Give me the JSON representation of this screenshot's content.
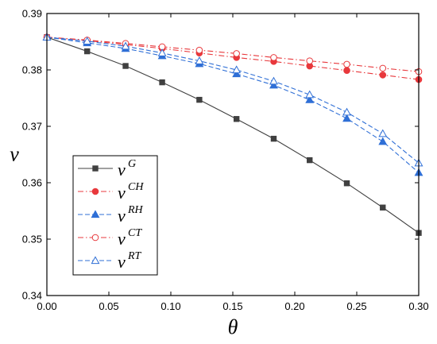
{
  "chart_data": {
    "type": "line",
    "title": "",
    "xlabel": "θ",
    "ylabel": "ν",
    "xlim": [
      0,
      0.3
    ],
    "ylim": [
      0.34,
      0.39
    ],
    "xticks": [
      "0.00",
      "0.05",
      "0.10",
      "0.15",
      "0.20",
      "0.25",
      "0.30"
    ],
    "yticks": [
      "0.34",
      "0.35",
      "0.36",
      "0.37",
      "0.38",
      "0.39"
    ],
    "grid": false,
    "legend_position": "lower-left",
    "x": [
      0,
      0.0325,
      0.0635,
      0.093,
      0.123,
      0.153,
      0.183,
      0.212,
      0.242,
      0.271,
      0.3
    ],
    "series": [
      {
        "name": "G",
        "legend_base": "ν",
        "color": "#404040",
        "marker": "square-filled",
        "line": "solid",
        "values": [
          0.3858,
          0.3833,
          0.3807,
          0.3778,
          0.3747,
          0.3713,
          0.3678,
          0.364,
          0.3599,
          0.3556,
          0.3511
        ]
      },
      {
        "name": "CH",
        "legend_base": "ν",
        "color": "#e8383c",
        "marker": "circle-filled",
        "line": "dash-dot",
        "values": [
          0.3858,
          0.3852,
          0.3845,
          0.3838,
          0.383,
          0.3822,
          0.3815,
          0.3807,
          0.3799,
          0.3791,
          0.3783
        ]
      },
      {
        "name": "RH",
        "legend_base": "ν",
        "color": "#2f6fd6",
        "marker": "triangle-filled",
        "line": "dashed",
        "values": [
          0.3858,
          0.3848,
          0.3838,
          0.3825,
          0.3811,
          0.3793,
          0.3773,
          0.3747,
          0.3714,
          0.3673,
          0.3618
        ]
      },
      {
        "name": "CT",
        "legend_base": "ν",
        "color": "#e8383c",
        "marker": "circle-open",
        "line": "dash-dot",
        "values": [
          0.3858,
          0.3853,
          0.3847,
          0.3841,
          0.3835,
          0.3829,
          0.3822,
          0.3816,
          0.381,
          0.3803,
          0.3797
        ]
      },
      {
        "name": "RT",
        "legend_base": "ν",
        "color": "#2f6fd6",
        "marker": "triangle-open",
        "line": "dashed",
        "values": [
          0.3858,
          0.3851,
          0.3842,
          0.383,
          0.3816,
          0.38,
          0.378,
          0.3756,
          0.3725,
          0.3687,
          0.3635
        ]
      }
    ]
  }
}
